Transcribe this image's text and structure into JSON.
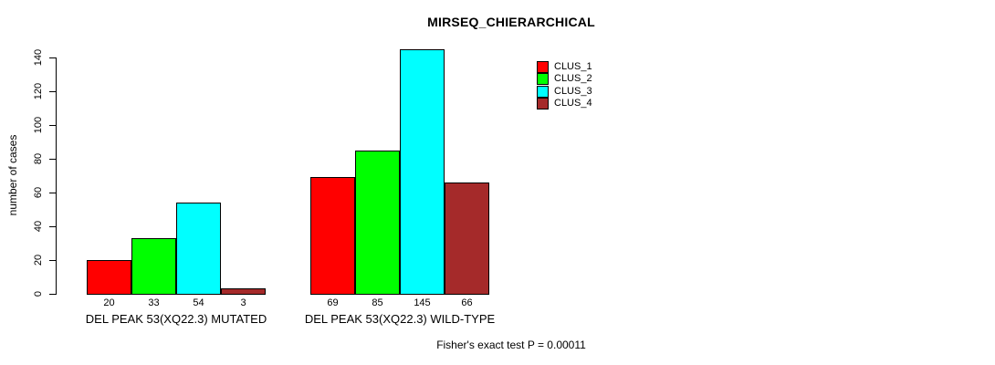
{
  "title": "MIRSEQ_CHIERARCHICAL",
  "footer": "Fisher's exact test P = 0.00011",
  "chart_data": {
    "type": "bar",
    "title": "MIRSEQ_CHIERARCHICAL",
    "xlabel": "",
    "ylabel": "number of cases",
    "ylim": [
      0,
      145
    ],
    "yticks": [
      0,
      20,
      40,
      60,
      80,
      100,
      120,
      140
    ],
    "grid": false,
    "legend_position": "top-right",
    "bar_value_labels_shown": true,
    "categories": [
      "DEL PEAK 53(XQ22.3) MUTATED",
      "DEL PEAK 53(XQ22.3) WILD-TYPE"
    ],
    "series": [
      {
        "name": "CLUS_1",
        "color": "#FF0000",
        "values": [
          20,
          69
        ]
      },
      {
        "name": "CLUS_2",
        "color": "#00FF00",
        "values": [
          33,
          85
        ]
      },
      {
        "name": "CLUS_3",
        "color": "#00FFFF",
        "values": [
          54,
          145
        ]
      },
      {
        "name": "CLUS_4",
        "color": "#A52A2A",
        "values": [
          3,
          66
        ]
      }
    ],
    "annotation": "Fisher's exact test P = 0.00011"
  }
}
